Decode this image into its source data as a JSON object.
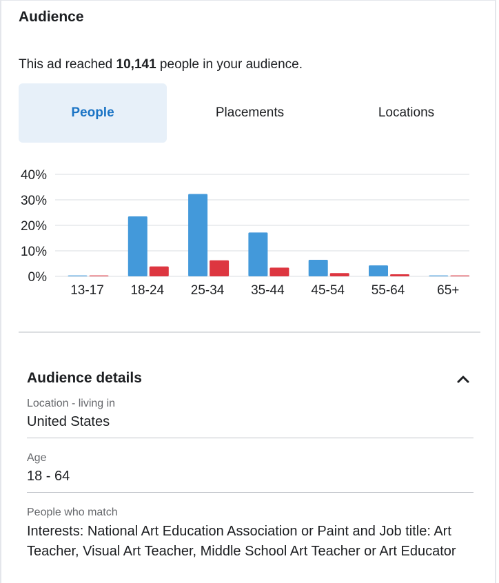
{
  "audience": {
    "title": "Audience",
    "reach_prefix": "This ad reached ",
    "reach_count": "10,141",
    "reach_suffix": " people in your audience."
  },
  "tabs": [
    {
      "label": "People",
      "active": true
    },
    {
      "label": "Placements",
      "active": false
    },
    {
      "label": "Locations",
      "active": false
    }
  ],
  "colors": {
    "series_a": "#4399da",
    "series_b": "#dd3640",
    "active_tab_bg": "#e7f0f9",
    "active_tab_text": "#1b74c5"
  },
  "chart_data": {
    "type": "bar",
    "categories": [
      "13-17",
      "18-24",
      "25-34",
      "35-44",
      "45-54",
      "55-64",
      "65+"
    ],
    "series": [
      {
        "color": "#4399da",
        "values": [
          0.2,
          23.5,
          32.3,
          17.2,
          6.5,
          4.3,
          0.2
        ]
      },
      {
        "color": "#dd3640",
        "values": [
          0.2,
          3.9,
          6.3,
          3.4,
          1.3,
          0.8,
          0.2
        ]
      }
    ],
    "y_ticks": [
      "0%",
      "10%",
      "20%",
      "30%",
      "40%"
    ],
    "ylim": [
      0,
      40
    ],
    "grid": true,
    "legend": "none"
  },
  "details": {
    "title": "Audience details",
    "toggle_icon": "chevron-up-icon",
    "fields": [
      {
        "label": "Location - living in",
        "value": "United States"
      },
      {
        "label": "Age",
        "value": "18 - 64"
      },
      {
        "label": "People who match",
        "value": "Interests: National Art Education Association or Paint and Job title: Art Teacher, Visual Art Teacher, Middle School Art Teacher or Art Educator"
      }
    ]
  }
}
